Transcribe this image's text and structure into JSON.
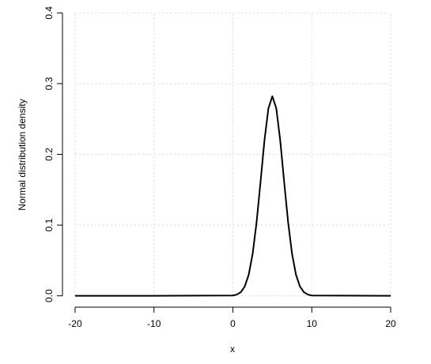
{
  "chart_data": {
    "type": "line",
    "xlabel": "x",
    "ylabel": "Normal distribution density",
    "x": [
      -20,
      -10,
      0,
      0.5,
      1,
      1.5,
      2,
      2.5,
      3,
      3.5,
      4,
      4.5,
      5,
      5.5,
      6,
      6.5,
      7,
      7.5,
      8,
      8.5,
      9,
      9.5,
      10,
      20
    ],
    "values": [
      0,
      0,
      0.0005,
      0.0018,
      0.0052,
      0.0132,
      0.0297,
      0.0591,
      0.1038,
      0.1607,
      0.2197,
      0.265,
      0.2821,
      0.265,
      0.2197,
      0.1607,
      0.1038,
      0.0591,
      0.0297,
      0.0132,
      0.0052,
      0.0018,
      0.0005,
      0
    ],
    "color": "#000000",
    "xlim": [
      -21.6,
      21.6
    ],
    "xticks": [
      -20,
      -10,
      0,
      10,
      20
    ],
    "ylim": [
      -0.016,
      0.416
    ],
    "yticks": [
      {
        "value": 0,
        "label": "0.0"
      },
      0.1,
      0.2,
      0.3,
      0.4
    ],
    "grid": true
  }
}
